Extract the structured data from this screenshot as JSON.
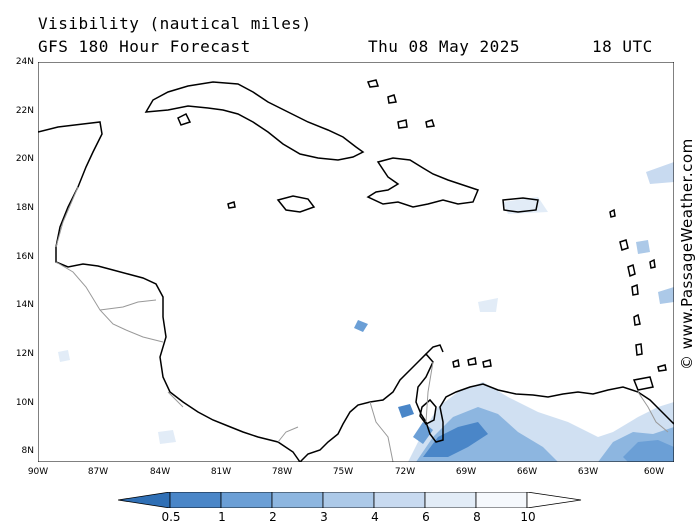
{
  "header": {
    "title": "Visibility (nautical miles)",
    "subtitle": "GFS 180 Hour Forecast",
    "date": "Thu 08 May 2025",
    "time": "18 UTC"
  },
  "credit": "© www.PassageWeather.com",
  "map": {
    "region": "Caribbean Sea",
    "lat_labels": [
      "24N",
      "22N",
      "20N",
      "18N",
      "16N",
      "14N",
      "12N",
      "10N",
      "8N"
    ],
    "lon_labels": [
      "90W",
      "87W",
      "84W",
      "81W",
      "78W",
      "75W",
      "72W",
      "69W",
      "66W",
      "63W",
      "60W"
    ],
    "lat_range": [
      7.5,
      24
    ],
    "lon_range": [
      -90,
      -59.5
    ]
  },
  "legend": {
    "labels": [
      "0.5",
      "1",
      "2",
      "3",
      "4",
      "6",
      "8",
      "10"
    ],
    "colors": [
      "#2f6fb5",
      "#4a86c8",
      "#6b9fd6",
      "#8db6e0",
      "#acc9e8",
      "#c8daf0",
      "#e2ecf7",
      "#f5f8fc"
    ]
  }
}
